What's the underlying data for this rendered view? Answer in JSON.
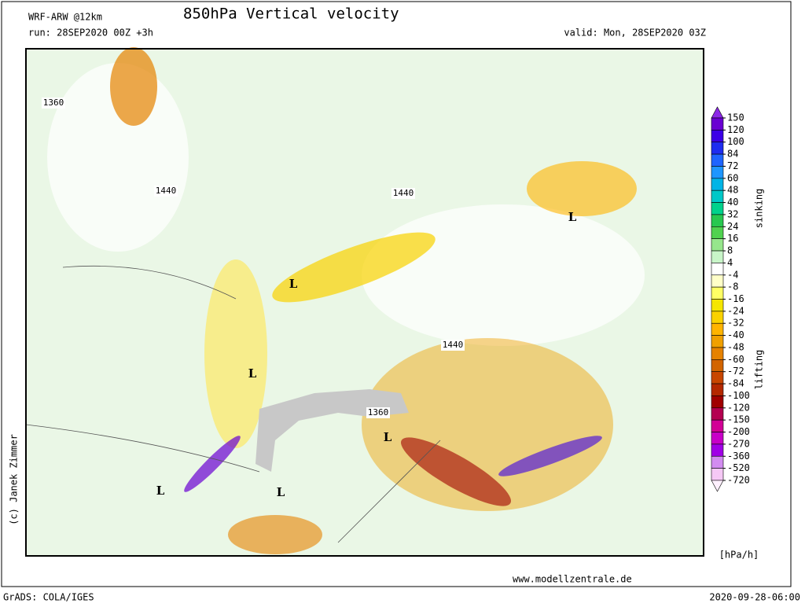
{
  "header": {
    "model": "WRF-ARW @12km",
    "title": "850hPa Vertical velocity",
    "run": "run: 28SEP2020 00Z +3h",
    "valid": "valid: Mon, 28SEP2020 03Z"
  },
  "legend": {
    "levels": [
      150,
      120,
      100,
      84,
      72,
      60,
      48,
      40,
      32,
      24,
      16,
      8,
      4,
      -4,
      -8,
      -16,
      -24,
      -32,
      -40,
      -48,
      -60,
      -72,
      -84,
      -100,
      -120,
      -150,
      -200,
      -270,
      -360,
      -520,
      -720
    ],
    "colors": [
      "#8c28e6",
      "#6a00d2",
      "#3c00e6",
      "#1e2cf0",
      "#1e64ff",
      "#1e96ff",
      "#00b4e6",
      "#00c8c8",
      "#00d28c",
      "#28c850",
      "#50d250",
      "#96e68c",
      "#c8f5c8",
      "#ffffff",
      "#ffffc8",
      "#ffff64",
      "#f5e600",
      "#fad200",
      "#ffb400",
      "#f0a000",
      "#e68200",
      "#d26400",
      "#c84600",
      "#b42800",
      "#a00000",
      "#b40050",
      "#d20096",
      "#c800c8",
      "#a000e6",
      "#d28cf0",
      "#f5c8f5",
      "#fff0ff"
    ],
    "upper_label": "sinking",
    "lower_label": "lifting",
    "unit": "[hPa/h]"
  },
  "map": {
    "annotations": [
      "L",
      "L",
      "L",
      "L",
      "L",
      "L",
      "1440",
      "1440",
      "1440",
      "1360",
      "1360"
    ]
  },
  "footer": {
    "copyright": "(c) Janek Zimmer",
    "website": "www.modellzentrale.de",
    "software": "GrADS: COLA/IGES",
    "timestamp": "2020-09-28-06:00"
  }
}
